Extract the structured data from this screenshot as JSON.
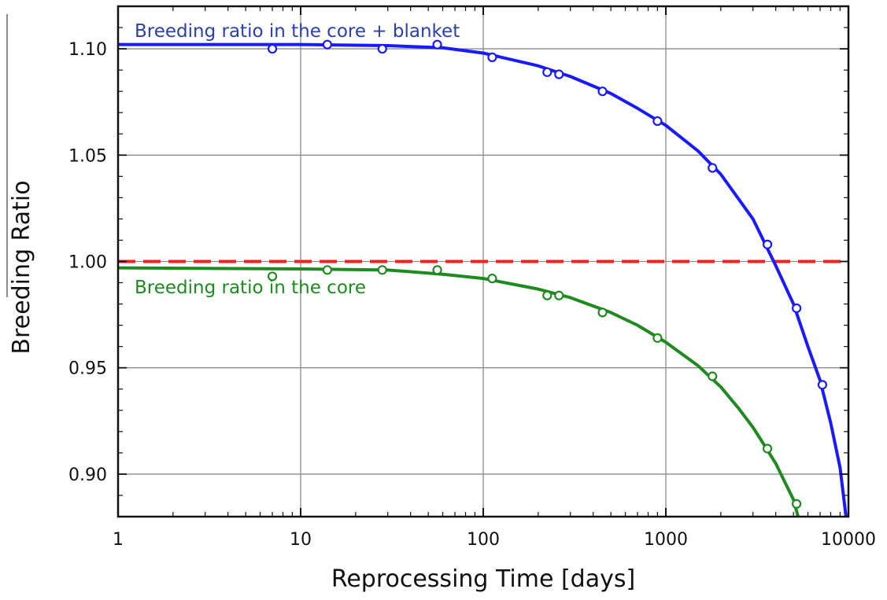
{
  "chart_data": {
    "type": "scatter",
    "title": "",
    "xlabel": "Reprocessing Time [days]",
    "ylabel": "Breeding Ratio",
    "xscale": "log",
    "xlim": [
      1,
      10000
    ],
    "ylim": [
      0.88,
      1.12
    ],
    "xticks": [
      1,
      10,
      100,
      1000,
      10000
    ],
    "xtick_labels": [
      "1",
      "10",
      "100",
      "1000",
      "10000"
    ],
    "yticks": [
      0.9,
      0.95,
      1.0,
      1.05,
      1.1
    ],
    "ytick_labels": [
      "0.90",
      "0.95",
      "1.00",
      "1.05",
      "1.10"
    ],
    "grid": true,
    "legend": "none",
    "series": [
      {
        "label": "Breeding ratio in the core + blanket",
        "color": "#1a1aff",
        "label_color": "#2a3fae",
        "marker": "open-circle",
        "points": [
          [
            7,
            1.1
          ],
          [
            14,
            1.102
          ],
          [
            28,
            1.1
          ],
          [
            56,
            1.102
          ],
          [
            112,
            1.096
          ],
          [
            224,
            1.089
          ],
          [
            260,
            1.088
          ],
          [
            450,
            1.08
          ],
          [
            900,
            1.066
          ],
          [
            1800,
            1.044
          ],
          [
            3600,
            1.008
          ],
          [
            5200,
            0.978
          ],
          [
            7200,
            0.942
          ]
        ],
        "fit": [
          [
            1,
            1.102
          ],
          [
            10,
            1.102
          ],
          [
            30,
            1.1015
          ],
          [
            60,
            1.1005
          ],
          [
            100,
            1.098
          ],
          [
            200,
            1.092
          ],
          [
            300,
            1.087
          ],
          [
            500,
            1.079
          ],
          [
            700,
            1.072
          ],
          [
            1000,
            1.064
          ],
          [
            1500,
            1.052
          ],
          [
            2000,
            1.041
          ],
          [
            3000,
            1.02
          ],
          [
            4000,
            0.998
          ],
          [
            5000,
            0.98
          ],
          [
            6000,
            0.96
          ],
          [
            7000,
            0.944
          ],
          [
            8000,
            0.924
          ],
          [
            9000,
            0.903
          ],
          [
            9700,
            0.88
          ]
        ]
      },
      {
        "label": "Breeding ratio in the core",
        "color": "#1f8a1f",
        "label_color": "#1f8a1f",
        "marker": "open-circle",
        "points": [
          [
            7,
            0.993
          ],
          [
            14,
            0.996
          ],
          [
            28,
            0.996
          ],
          [
            56,
            0.996
          ],
          [
            112,
            0.992
          ],
          [
            224,
            0.984
          ],
          [
            260,
            0.984
          ],
          [
            450,
            0.976
          ],
          [
            900,
            0.964
          ],
          [
            1800,
            0.946
          ],
          [
            3600,
            0.912
          ],
          [
            5200,
            0.886
          ]
        ],
        "fit": [
          [
            1,
            0.997
          ],
          [
            10,
            0.9965
          ],
          [
            30,
            0.996
          ],
          [
            60,
            0.994
          ],
          [
            100,
            0.992
          ],
          [
            200,
            0.987
          ],
          [
            300,
            0.983
          ],
          [
            500,
            0.976
          ],
          [
            700,
            0.97
          ],
          [
            1000,
            0.962
          ],
          [
            1500,
            0.951
          ],
          [
            2000,
            0.941
          ],
          [
            2500,
            0.931
          ],
          [
            3000,
            0.922
          ],
          [
            3500,
            0.913
          ],
          [
            4000,
            0.905
          ],
          [
            4500,
            0.896
          ],
          [
            5000,
            0.888
          ],
          [
            5300,
            0.88
          ]
        ]
      }
    ],
    "reference_line": {
      "y": 1.0,
      "color": "#ff1f1f",
      "style": "dashed"
    }
  }
}
